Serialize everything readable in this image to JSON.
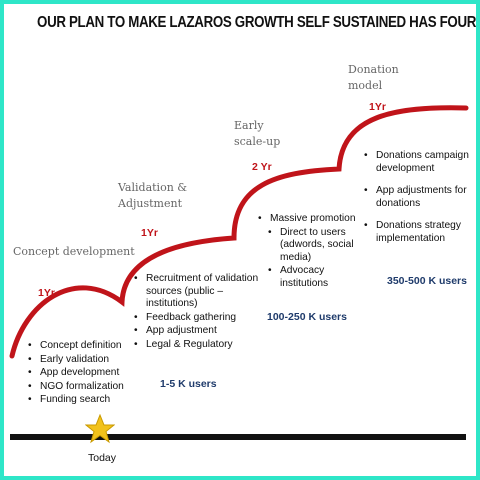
{
  "title": "OUR PLAN TO MAKE LAZAROS GROWTH SELF SUSTAINED HAS FOUR PHASES",
  "colors": {
    "curve": "#c0141a",
    "users": "#1f3b6b",
    "timeline": "#111111",
    "star": "#f2c21b",
    "border": "#2ee6c8"
  },
  "phases": [
    {
      "name": "Concept development",
      "duration": "1Yr",
      "items": [
        "Concept definition",
        "Early validation",
        "App development",
        "NGO formalization",
        "Funding search"
      ],
      "users": "1-5 K users"
    },
    {
      "name_lines": [
        "Validation &",
        "Adjustment"
      ],
      "duration": "1Yr",
      "items": [
        "Recruitment of validation sources (public – institutions)",
        "Feedback gathering",
        "App adjustment",
        "Legal & Regulatory"
      ],
      "users": "100-250 K users"
    },
    {
      "name_lines": [
        "Early",
        "scale-up"
      ],
      "duration": "2 Yr",
      "items": [
        "Massive promotion"
      ],
      "sub_items": [
        "Direct to users (adwords, social media)",
        "Advocacy institutions"
      ],
      "users": "350-500 K users"
    },
    {
      "name_lines": [
        "Donation",
        "model"
      ],
      "duration": "1Yr",
      "items": [
        "Donations campaign development",
        "App adjustments for donations",
        "Donations strategy implementation"
      ]
    }
  ],
  "timeline": {
    "today_label": "Today"
  },
  "icons": {
    "today_marker": "star-icon"
  }
}
